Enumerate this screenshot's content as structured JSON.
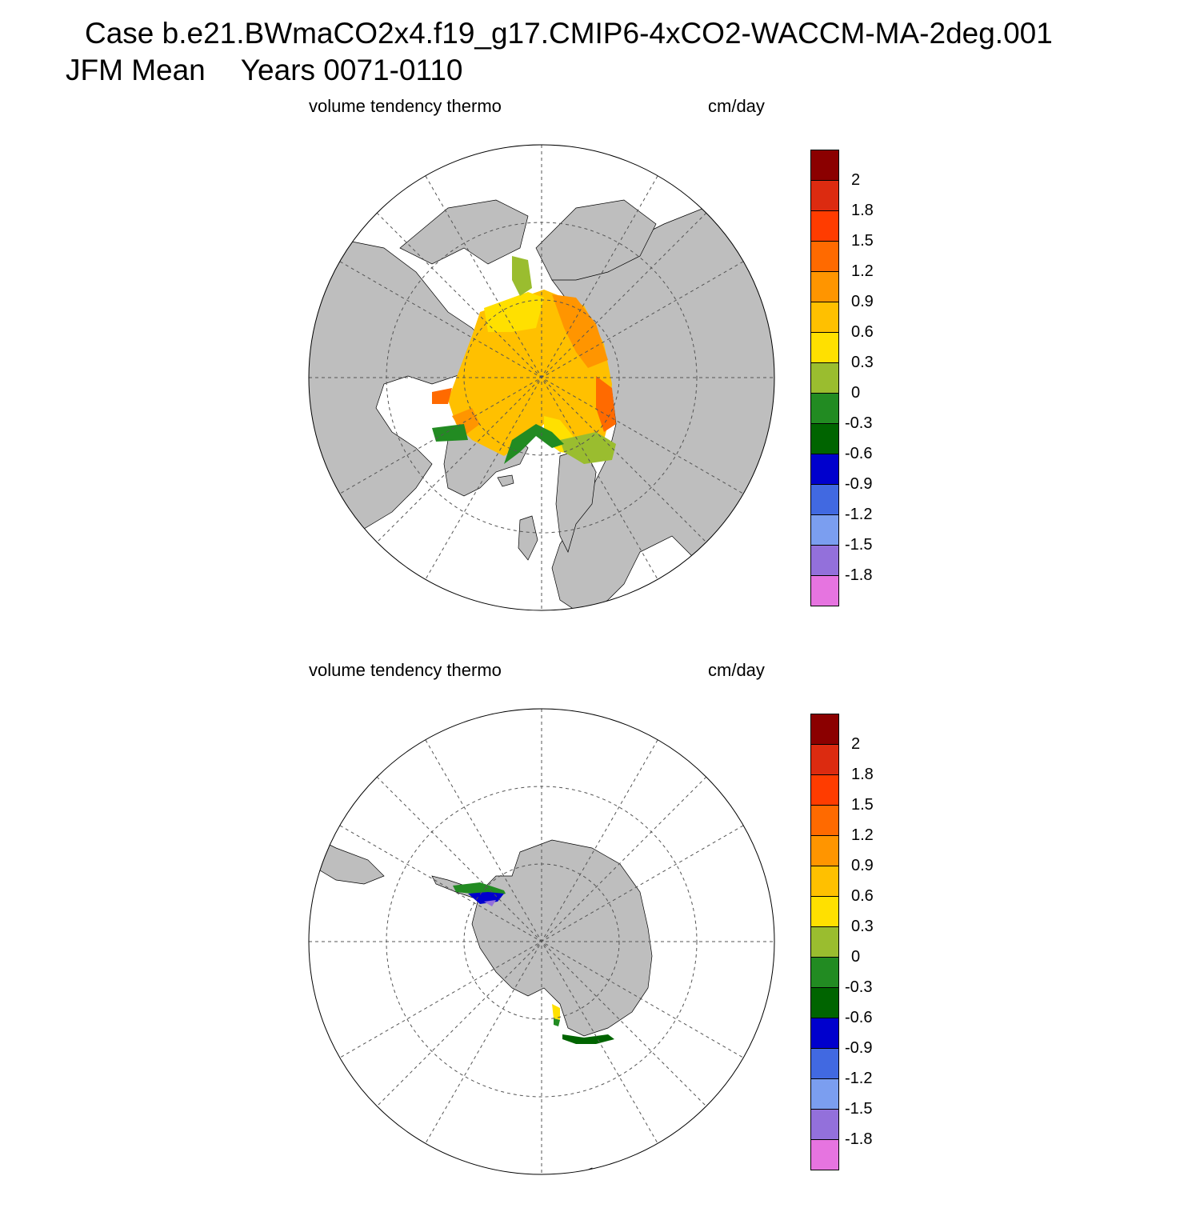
{
  "header": {
    "case_line": "Case b.e21.BWmaCO2x4.f19_g17.CMIP6-4xCO2-WACCM-MA-2deg.001",
    "season": "JFM Mean",
    "years": "Years 0071-0110"
  },
  "panels": [
    {
      "id": "north",
      "variable_label": "volume tendency thermo",
      "units": "cm/day"
    },
    {
      "id": "south",
      "variable_label": "volume tendency thermo",
      "units": "cm/day"
    }
  ],
  "colorbar": {
    "labels": [
      "2",
      "1.8",
      "1.5",
      "1.2",
      "0.9",
      "0.6",
      "0.3",
      "0",
      "-0.3",
      "-0.6",
      "-0.9",
      "-1.2",
      "-1.5",
      "-1.8"
    ],
    "colors": [
      "#8b0000",
      "#dc2b10",
      "#ff3c00",
      "#ff6a00",
      "#ff9500",
      "#ffc000",
      "#ffe000",
      "#9abd2f",
      "#228b22",
      "#006400",
      "#0000cd",
      "#4169e1",
      "#7b9ef0",
      "#9370db",
      "#e674e0"
    ]
  },
  "map_colors": {
    "land": "#bebebe",
    "ocean": "#ffffff",
    "grid": "#555555"
  }
}
